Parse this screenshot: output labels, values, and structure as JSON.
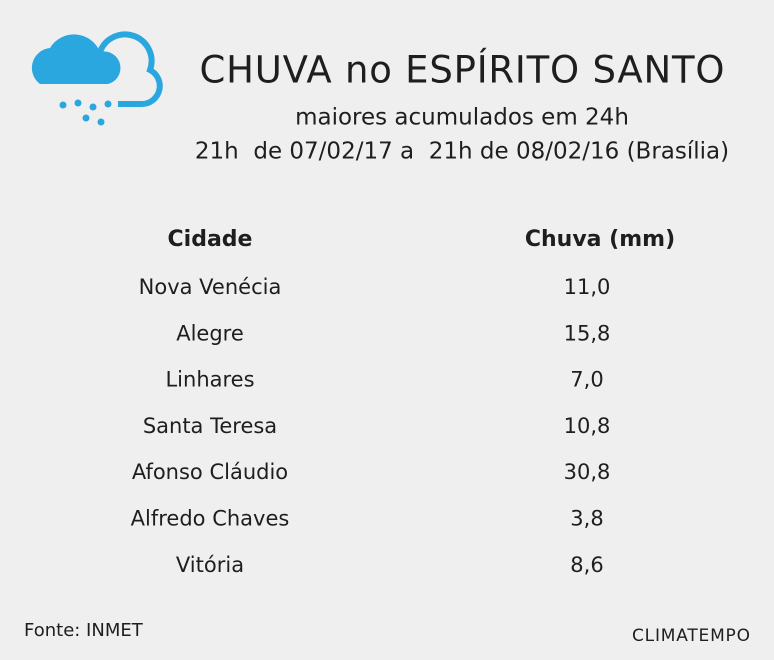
{
  "header": {
    "title": "CHUVA no ESPÍRITO SANTO",
    "subtitle": "maiores acumulados em 24h",
    "period": "21h  de 07/02/17 a  21h de 08/02/16 (Brasília)"
  },
  "table": {
    "columns": [
      "Cidade",
      "Chuva (mm)"
    ],
    "rows": [
      [
        "Nova Venécia",
        "11,0"
      ],
      [
        "Alegre",
        "15,8"
      ],
      [
        "Linhares",
        "7,0"
      ],
      [
        "Santa Teresa",
        "10,8"
      ],
      [
        "Afonso Cláudio",
        "30,8"
      ],
      [
        "Alfredo Chaves",
        "3,8"
      ],
      [
        "Vitória",
        "8,6"
      ]
    ]
  },
  "footer": {
    "source": "Fonte: INMET",
    "brand": "CLIMATEMPO"
  }
}
